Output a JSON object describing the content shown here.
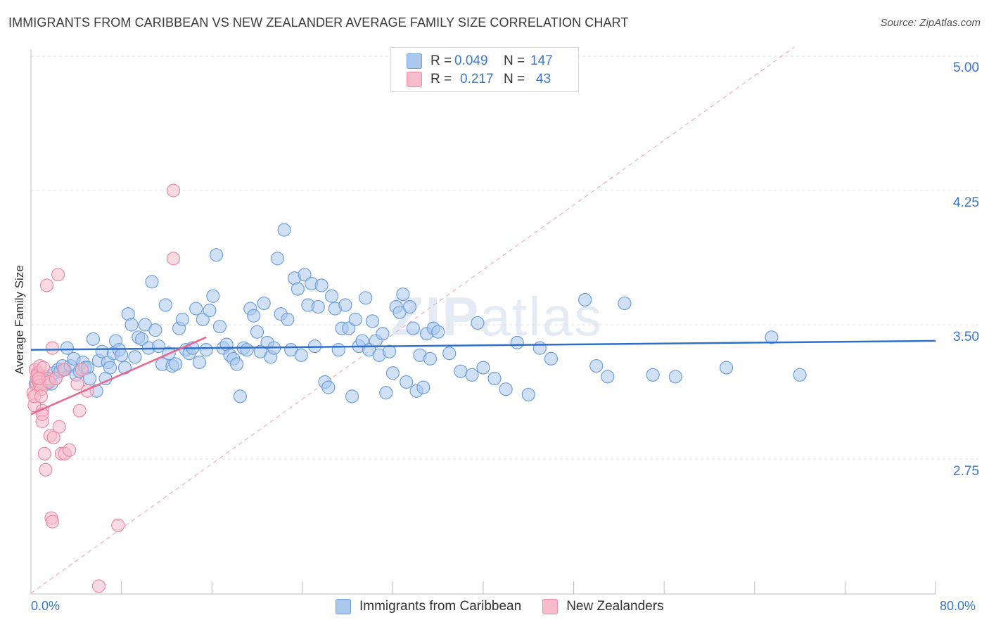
{
  "header": {
    "title": "IMMIGRANTS FROM CARIBBEAN VS NEW ZEALANDER AVERAGE FAMILY SIZE CORRELATION CHART",
    "source": "Source: ZipAtlas.com"
  },
  "watermark": {
    "zip": "ZIP",
    "atlas": "atlas"
  },
  "legend": {
    "rows": [
      {
        "r_label": "R =",
        "r_value": "0.049",
        "n_label": "N =",
        "n_value": "147",
        "color": "#aac8ee"
      },
      {
        "r_label": "R =",
        "r_value": "0.217",
        "n_label": "N =",
        "n_value": "43",
        "color": "#f6bccb"
      }
    ]
  },
  "bottom_legend": {
    "items": [
      {
        "label": "Immigrants from Caribbean",
        "color": "#aac8ee"
      },
      {
        "label": "New Zealanders",
        "color": "#f6bccb"
      }
    ]
  },
  "colors": {
    "blue_fill": "#aac8ee",
    "blue_stroke": "#6f9fdb",
    "blue_line": "#2f6fca",
    "pink_fill": "#f6bccb",
    "pink_stroke": "#ee8aa6",
    "pink_line": "#e8668f",
    "tick_text": "#3a78c9"
  },
  "chart_data": {
    "type": "scatter",
    "title": "IMMIGRANTS FROM CARIBBEAN VS NEW ZEALANDER AVERAGE FAMILY SIZE CORRELATION CHART",
    "xlabel": "",
    "ylabel": "Average Family Size",
    "xlim": [
      0,
      80
    ],
    "ylim": [
      2.0,
      5.1
    ],
    "x_tick_labels": [
      "0.0%",
      "80.0%"
    ],
    "y_ticks": [
      2.75,
      3.5,
      4.25,
      5.0
    ],
    "y_tick_labels": [
      "2.75",
      "3.50",
      "4.25",
      "5.00"
    ],
    "grid": "horizontal dashed",
    "legend_position": "top-center",
    "series": [
      {
        "name": "Immigrants from Caribbean",
        "trend": {
          "x": [
            0,
            80
          ],
          "y": [
            3.36,
            3.41
          ]
        },
        "points": [
          [
            0.4,
            3.17
          ],
          [
            0.6,
            3.19
          ],
          [
            0.8,
            3.2
          ],
          [
            1.0,
            3.18
          ],
          [
            1.2,
            3.21
          ],
          [
            1.4,
            3.17
          ],
          [
            1.6,
            3.19
          ],
          [
            1.8,
            3.17
          ],
          [
            2.0,
            3.23
          ],
          [
            2.2,
            3.2
          ],
          [
            2.4,
            3.25
          ],
          [
            2.6,
            3.24
          ],
          [
            2.8,
            3.27
          ],
          [
            3.0,
            3.25
          ],
          [
            3.2,
            3.37
          ],
          [
            3.5,
            3.27
          ],
          [
            3.8,
            3.31
          ],
          [
            4.0,
            3.22
          ],
          [
            4.3,
            3.24
          ],
          [
            4.6,
            3.29
          ],
          [
            4.8,
            3.26
          ],
          [
            5.0,
            3.26
          ],
          [
            5.2,
            3.2
          ],
          [
            5.5,
            3.42
          ],
          [
            5.8,
            3.13
          ],
          [
            6.0,
            3.3
          ],
          [
            6.3,
            3.35
          ],
          [
            6.6,
            3.2
          ],
          [
            6.8,
            3.29
          ],
          [
            7.0,
            3.26
          ],
          [
            7.3,
            3.34
          ],
          [
            7.5,
            3.41
          ],
          [
            7.8,
            3.36
          ],
          [
            8.0,
            3.33
          ],
          [
            8.3,
            3.26
          ],
          [
            8.6,
            3.56
          ],
          [
            8.9,
            3.5
          ],
          [
            9.2,
            3.32
          ],
          [
            9.5,
            3.43
          ],
          [
            9.8,
            3.42
          ],
          [
            10.1,
            3.5
          ],
          [
            10.4,
            3.37
          ],
          [
            10.7,
            3.74
          ],
          [
            11.0,
            3.47
          ],
          [
            11.3,
            3.38
          ],
          [
            11.6,
            3.28
          ],
          [
            11.9,
            3.61
          ],
          [
            12.2,
            3.34
          ],
          [
            12.5,
            3.27
          ],
          [
            12.8,
            3.28
          ],
          [
            13.1,
            3.48
          ],
          [
            13.4,
            3.53
          ],
          [
            13.7,
            3.36
          ],
          [
            14.0,
            3.34
          ],
          [
            14.3,
            3.37
          ],
          [
            14.6,
            3.59
          ],
          [
            14.9,
            3.29
          ],
          [
            15.2,
            3.53
          ],
          [
            15.5,
            3.36
          ],
          [
            15.8,
            3.58
          ],
          [
            16.1,
            3.66
          ],
          [
            16.4,
            3.89
          ],
          [
            16.7,
            3.49
          ],
          [
            17.0,
            3.37
          ],
          [
            17.3,
            3.39
          ],
          [
            17.6,
            3.33
          ],
          [
            17.9,
            3.31
          ],
          [
            18.2,
            3.28
          ],
          [
            18.5,
            3.1
          ],
          [
            18.8,
            3.37
          ],
          [
            19.1,
            3.36
          ],
          [
            19.4,
            3.59
          ],
          [
            19.7,
            3.55
          ],
          [
            20.0,
            3.46
          ],
          [
            20.3,
            3.35
          ],
          [
            20.6,
            3.62
          ],
          [
            20.9,
            3.4
          ],
          [
            21.2,
            3.32
          ],
          [
            21.5,
            3.37
          ],
          [
            21.8,
            3.87
          ],
          [
            22.1,
            3.56
          ],
          [
            22.4,
            4.03
          ],
          [
            22.7,
            3.53
          ],
          [
            23.0,
            3.36
          ],
          [
            23.3,
            3.76
          ],
          [
            23.6,
            3.7
          ],
          [
            23.9,
            3.33
          ],
          [
            24.2,
            3.78
          ],
          [
            24.5,
            3.61
          ],
          [
            24.8,
            3.73
          ],
          [
            25.1,
            3.38
          ],
          [
            25.4,
            3.6
          ],
          [
            25.7,
            3.72
          ],
          [
            26.0,
            3.18
          ],
          [
            26.3,
            3.15
          ],
          [
            26.6,
            3.66
          ],
          [
            26.9,
            3.59
          ],
          [
            27.2,
            3.36
          ],
          [
            27.5,
            3.48
          ],
          [
            27.8,
            3.61
          ],
          [
            28.1,
            3.48
          ],
          [
            28.4,
            3.1
          ],
          [
            28.7,
            3.53
          ],
          [
            29.0,
            3.38
          ],
          [
            29.3,
            3.41
          ],
          [
            29.6,
            3.65
          ],
          [
            29.9,
            3.36
          ],
          [
            30.2,
            3.52
          ],
          [
            30.5,
            3.41
          ],
          [
            30.8,
            3.33
          ],
          [
            31.1,
            3.45
          ],
          [
            31.4,
            3.12
          ],
          [
            31.7,
            3.35
          ],
          [
            32.0,
            3.23
          ],
          [
            32.3,
            3.6
          ],
          [
            32.6,
            3.57
          ],
          [
            32.9,
            3.67
          ],
          [
            33.2,
            3.18
          ],
          [
            33.5,
            3.6
          ],
          [
            33.8,
            3.48
          ],
          [
            34.1,
            3.13
          ],
          [
            34.4,
            3.33
          ],
          [
            34.7,
            3.15
          ],
          [
            35.0,
            3.45
          ],
          [
            35.3,
            3.31
          ],
          [
            35.6,
            3.48
          ],
          [
            36.0,
            3.46
          ],
          [
            37.0,
            3.34
          ],
          [
            38.0,
            3.24
          ],
          [
            39.0,
            3.22
          ],
          [
            39.5,
            3.51
          ],
          [
            40.0,
            3.26
          ],
          [
            41.0,
            3.2
          ],
          [
            42.0,
            3.14
          ],
          [
            43.0,
            3.4
          ],
          [
            44.0,
            3.11
          ],
          [
            45.0,
            3.37
          ],
          [
            46.0,
            3.31
          ],
          [
            49.0,
            3.64
          ],
          [
            50.0,
            3.27
          ],
          [
            51.0,
            3.21
          ],
          [
            52.5,
            3.62
          ],
          [
            55.0,
            3.22
          ],
          [
            57.0,
            3.21
          ],
          [
            61.5,
            3.26
          ],
          [
            65.5,
            3.43
          ],
          [
            68.0,
            3.22
          ]
        ]
      },
      {
        "name": "New Zealanders",
        "trend": {
          "x": [
            0,
            15.5
          ],
          "y": [
            3.0,
            3.43
          ]
        },
        "points": [
          [
            0.2,
            3.12
          ],
          [
            0.3,
            3.05
          ],
          [
            0.4,
            3.25
          ],
          [
            0.5,
            3.17
          ],
          [
            0.5,
            3.2
          ],
          [
            0.6,
            3.23
          ],
          [
            0.6,
            3.22
          ],
          [
            0.7,
            3.18
          ],
          [
            0.8,
            3.16
          ],
          [
            0.8,
            3.27
          ],
          [
            0.9,
            3.14
          ],
          [
            1.0,
            3.02
          ],
          [
            1.0,
            2.96
          ],
          [
            1.1,
            3.26
          ],
          [
            1.2,
            2.78
          ],
          [
            1.3,
            2.69
          ],
          [
            1.4,
            3.72
          ],
          [
            1.5,
            3.2
          ],
          [
            1.6,
            3.18
          ],
          [
            1.7,
            2.88
          ],
          [
            1.8,
            2.42
          ],
          [
            1.9,
            2.4
          ],
          [
            1.9,
            3.37
          ],
          [
            2.0,
            2.87
          ],
          [
            2.2,
            3.2
          ],
          [
            2.4,
            3.78
          ],
          [
            2.5,
            2.93
          ],
          [
            2.7,
            2.78
          ],
          [
            2.9,
            3.25
          ],
          [
            3.0,
            2.78
          ],
          [
            3.4,
            2.8
          ],
          [
            4.1,
            3.17
          ],
          [
            4.3,
            3.02
          ],
          [
            4.5,
            3.25
          ],
          [
            5.0,
            3.13
          ],
          [
            6.0,
            2.04
          ],
          [
            7.7,
            2.38
          ],
          [
            12.6,
            4.25
          ],
          [
            12.6,
            3.87
          ],
          [
            0.3,
            3.1
          ],
          [
            1.0,
            3.0
          ],
          [
            0.7,
            3.2
          ],
          [
            0.9,
            3.1
          ]
        ]
      }
    ],
    "diagonal_reference": {
      "x": [
        0,
        67.5
      ],
      "y": [
        2.0,
        5.05
      ],
      "style": "dashed"
    }
  }
}
